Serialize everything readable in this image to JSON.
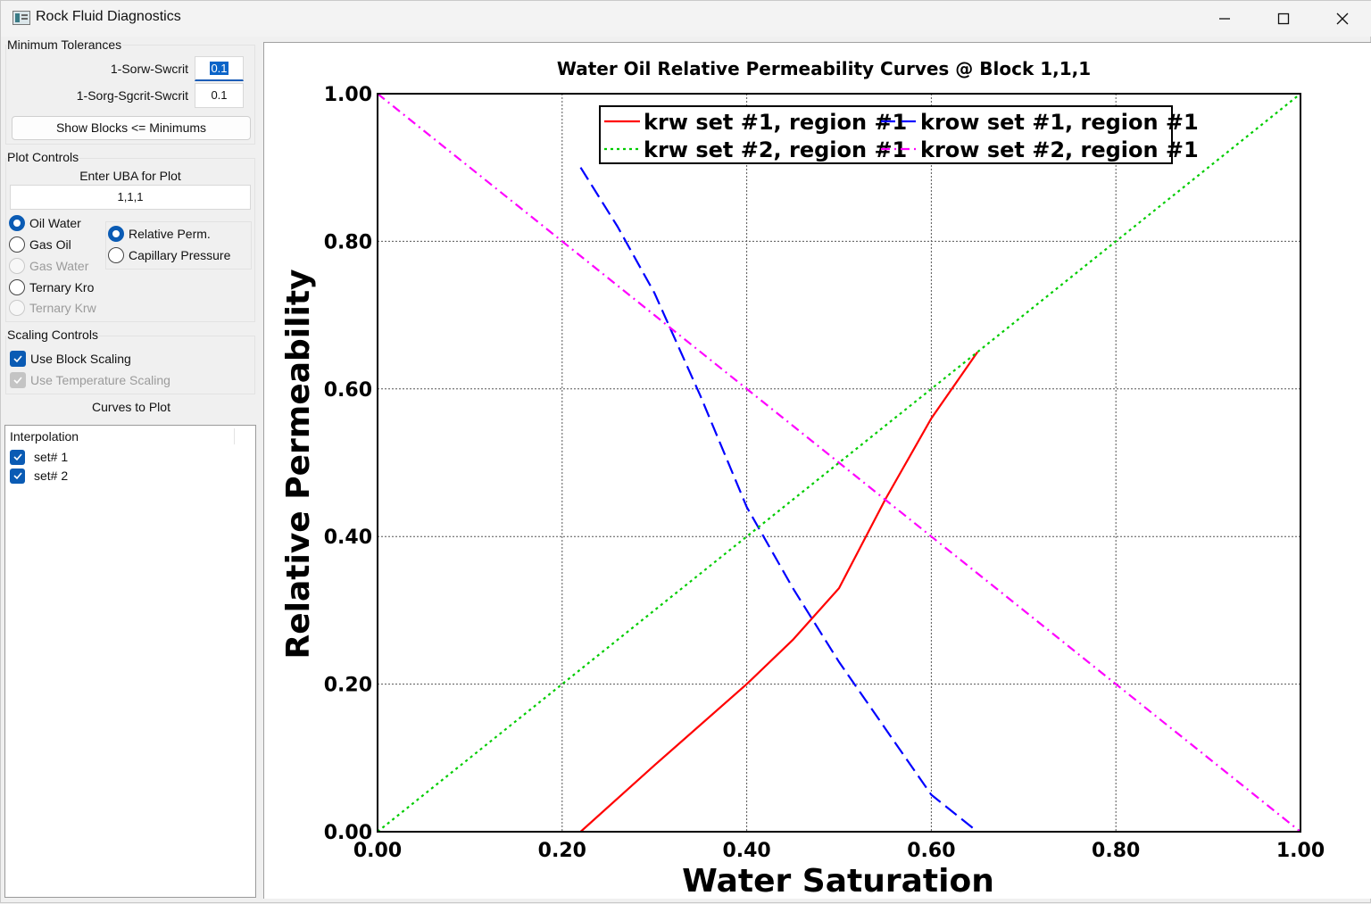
{
  "window": {
    "title": "Rock Fluid Diagnostics",
    "icons": {
      "app": "app-icon",
      "minimize": "minimize-icon",
      "maximize": "maximize-icon",
      "close": "close-icon"
    }
  },
  "tolerances": {
    "group_title": "Minimum Tolerances",
    "sorw_label": "1-Sorw-Swcrit",
    "sorw_value": "0.1",
    "sorg_label": "1-Sorg-Sgcrit-Swcrit",
    "sorg_value": "0.1",
    "show_blocks_button": "Show Blocks <= Minimums"
  },
  "plot_controls": {
    "group_title": "Plot Controls",
    "uba_label": "Enter UBA for Plot",
    "uba_value": "1,1,1",
    "phase_options": [
      {
        "label": "Oil Water",
        "checked": true,
        "enabled": true
      },
      {
        "label": "Gas Oil",
        "checked": false,
        "enabled": true
      },
      {
        "label": "Gas Water",
        "checked": false,
        "enabled": false
      },
      {
        "label": "Ternary Kro",
        "checked": false,
        "enabled": true
      },
      {
        "label": "Ternary Krw",
        "checked": false,
        "enabled": false
      }
    ],
    "type_options": [
      {
        "label": "Relative Perm.",
        "checked": true
      },
      {
        "label": "Capillary Pressure",
        "checked": false
      }
    ]
  },
  "scaling": {
    "group_title": "Scaling Controls",
    "block_scaling": {
      "label": "Use Block Scaling",
      "checked": true,
      "enabled": true
    },
    "temperature_scaling": {
      "label": "Use Temperature Scaling",
      "checked": true,
      "enabled": false
    }
  },
  "curves": {
    "title": "Curves to Plot",
    "header": "Interpolation",
    "items": [
      {
        "label": "set# 1",
        "checked": true
      },
      {
        "label": "set# 2",
        "checked": true
      }
    ]
  },
  "chart_data": {
    "type": "line",
    "title": "Water Oil Relative Permeability Curves @ Block 1,1,1",
    "xlabel": "Water Saturation",
    "ylabel": "Relative Permeability",
    "xlim": [
      0,
      1
    ],
    "ylim": [
      0,
      1
    ],
    "xticks": [
      "0.00",
      "0.20",
      "0.40",
      "0.60",
      "0.80",
      "1.00"
    ],
    "yticks": [
      "0.00",
      "0.20",
      "0.40",
      "0.60",
      "0.80",
      "1.00"
    ],
    "grid": true,
    "legend_position": "top-center",
    "series": [
      {
        "name": "krw set #1, region #1",
        "color": "#ff0000",
        "dash": "solid",
        "x": [
          0.22,
          0.3,
          0.4,
          0.45,
          0.5,
          0.55,
          0.6,
          0.65
        ],
        "y": [
          0.0,
          0.09,
          0.2,
          0.26,
          0.33,
          0.45,
          0.56,
          0.65
        ]
      },
      {
        "name": "krow set #1, region #1",
        "color": "#0000ff",
        "dash": "dashed",
        "x": [
          0.22,
          0.26,
          0.3,
          0.35,
          0.4,
          0.45,
          0.5,
          0.55,
          0.6,
          0.65
        ],
        "y": [
          0.9,
          0.82,
          0.73,
          0.59,
          0.44,
          0.33,
          0.23,
          0.14,
          0.05,
          0.0
        ]
      },
      {
        "name": "krw set #2, region #1",
        "color": "#00cc00",
        "dash": "dotted",
        "x": [
          0.0,
          1.0
        ],
        "y": [
          0.0,
          1.0
        ]
      },
      {
        "name": "krow set #2, region #1",
        "color": "#ff00ff",
        "dash": "dashdot",
        "x": [
          0.0,
          1.0
        ],
        "y": [
          1.0,
          0.0
        ]
      }
    ]
  }
}
